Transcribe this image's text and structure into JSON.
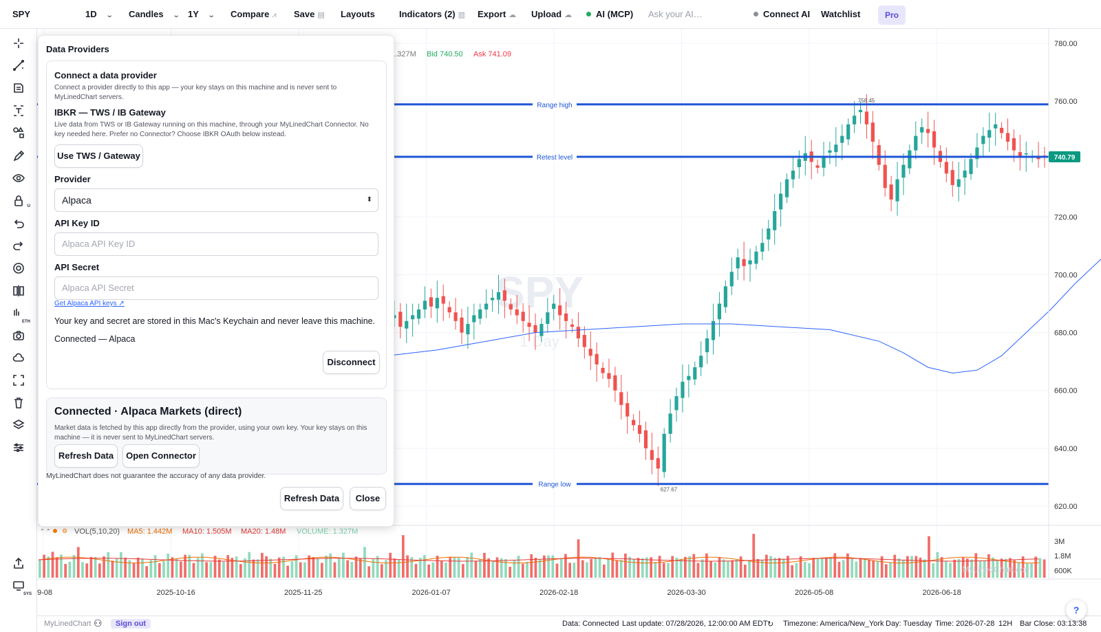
{
  "toolbar": {
    "symbol": "SPY",
    "interval": "1D",
    "chart_type": "Candles",
    "range": "1Y",
    "compare": "Compare",
    "save": "Save",
    "layouts": "Layouts",
    "indicators": "Indicators (2)",
    "export": "Export",
    "upload": "Upload",
    "ai": "AI (MCP)",
    "ai_placeholder": "Ask your AI…",
    "connect_ai": "Connect AI",
    "watchlist": "Watchlist",
    "pro": "Pro",
    "ai_dot_color": "#22ab5f",
    "connect_dot_color": "#8a8f98"
  },
  "left_tools": [
    "crosshair-icon",
    "trend-line-icon",
    "fib-icon",
    "text-icon",
    "shapes-icon",
    "pencil-icon",
    "eye-icon",
    "lock-icon",
    "undo-icon",
    "redo-icon",
    "settings-icon",
    "split-icon",
    "eth-icon",
    "camera-icon",
    "cloud-icon",
    "fullscreen-icon",
    "trash-icon",
    "layers-icon",
    "sliders-icon",
    "share-icon",
    "sys-icon"
  ],
  "left_tool_badges": {
    "eth": "ETH",
    "sys": "SYS",
    "lock": "U"
  },
  "header": {
    "vol": ": 1.327M",
    "bid": "Bid 740.50",
    "ask": "Ask 741.09",
    "bid_color": "#22ab5f",
    "ask_color": "#f23645"
  },
  "watermark": {
    "symbol": "SPY",
    "interval": "1 Day"
  },
  "levels": [
    {
      "label": "Range high",
      "price": 758.9
    },
    {
      "label": "Retest level",
      "price": 740.79
    },
    {
      "label": "Range low",
      "price": 627.67
    }
  ],
  "level_color": "#1e55d6",
  "last_price": "740.79",
  "price_axis": [
    "780.00",
    "760.00",
    "740.00",
    "720.00",
    "700.00",
    "680.00",
    "660.00",
    "640.00",
    "620.00"
  ],
  "annotations": {
    "high": "758.45",
    "low": "627.67"
  },
  "volume_legend": {
    "params": "VOL(5,10,20)",
    "ma5": "MA5: 1.442M",
    "ma10": "MA10: 1.505M",
    "ma20": "MA20: 1.48M",
    "volume": "VOLUME: 1.327M"
  },
  "volume_axis": [
    "3M",
    "1.8M",
    "600K"
  ],
  "volume_watermark": "MyLinedChart.com",
  "date_axis": [
    "9-08",
    "2025-10-16",
    "2025-11-25",
    "2026-01-07",
    "2026-02-18",
    "2026-03-30",
    "2026-05-08",
    "2026-06-18"
  ],
  "colors": {
    "up": "#26a69a",
    "down": "#ef5350",
    "ma_line": "#2962ff"
  },
  "chart_data": {
    "type": "candlestick",
    "symbol": "SPY",
    "y_range": [
      615,
      785
    ],
    "ma_line": [
      [
        0,
        672
      ],
      [
        8,
        674
      ],
      [
        16,
        677
      ],
      [
        24,
        680
      ],
      [
        32,
        681
      ],
      [
        40,
        682
      ],
      [
        48,
        683
      ],
      [
        56,
        683
      ],
      [
        64,
        682
      ],
      [
        72,
        681
      ],
      [
        80,
        677
      ],
      [
        84,
        673
      ],
      [
        88,
        668
      ],
      [
        92,
        666
      ],
      [
        96,
        667
      ],
      [
        100,
        672
      ],
      [
        104,
        680
      ],
      [
        108,
        688
      ],
      [
        112,
        697
      ],
      [
        116,
        705
      ],
      [
        120,
        713
      ],
      [
        124,
        721
      ],
      [
        128,
        727
      ],
      [
        132,
        731
      ],
      [
        136,
        734
      ],
      [
        140,
        736
      ],
      [
        144,
        738
      ],
      [
        148,
        739
      ],
      [
        152,
        740
      ],
      [
        157,
        741
      ]
    ],
    "closes": [
      685,
      686,
      682,
      684,
      686,
      688,
      691,
      689,
      692,
      690,
      687,
      684,
      680,
      683,
      686,
      688,
      690,
      692,
      694,
      691,
      688,
      686,
      684,
      682,
      680,
      683,
      687,
      690,
      686,
      684,
      682,
      678,
      675,
      672,
      669,
      666,
      664,
      660,
      655,
      651,
      648,
      645,
      640,
      636,
      633,
      645,
      652,
      658,
      663,
      665,
      668,
      672,
      678,
      684,
      690,
      696,
      701,
      706,
      703,
      705,
      708,
      711,
      716,
      722,
      728,
      733,
      736,
      740,
      742,
      739,
      737,
      741,
      743,
      745,
      748,
      752,
      755,
      757,
      752,
      746,
      738,
      730,
      726,
      733,
      738,
      743,
      748,
      751,
      749,
      744,
      739,
      735,
      731,
      733,
      736,
      740,
      744,
      748,
      750,
      752,
      749,
      746,
      743,
      741,
      742,
      741,
      740,
      741
    ]
  },
  "panel": {
    "title": "Data Providers",
    "connect_title": "Connect a data provider",
    "connect_desc": "Connect a provider directly to this app — your key stays on this machine and is never sent to MyLinedChart servers.",
    "ibkr_title": "IBKR — TWS / IB Gateway",
    "ibkr_desc": "Live data from TWS or IB Gateway running on this machine, through your MyLinedChart Connector. No key needed here. Prefer no Connector? Choose IBKR OAuth below instead.",
    "use_tws": "Use TWS / Gateway",
    "provider_label": "Provider",
    "provider_value": "Alpaca",
    "key_id_label": "API Key ID",
    "key_id_placeholder": "Alpaca API Key ID",
    "secret_label": "API Secret",
    "secret_placeholder": "Alpaca API Secret",
    "get_keys": "Get Alpaca API keys ↗",
    "keychain_note": "Your key and secret are stored in this Mac's Keychain and never leave this machine.",
    "connected_line": "Connected — Alpaca",
    "disconnect": "Disconnect",
    "status_title": "Connected · Alpaca Markets (direct)",
    "status_desc": "Market data is fetched by this app directly from the provider, using your own key. Your key stays on this machine — it is never sent to MyLinedChart servers.",
    "refresh": "Refresh Data",
    "open_connector": "Open Connector",
    "disclaimer": "MyLinedChart does not guarantee the accuracy of any data provider.",
    "refresh_footer": "Refresh Data",
    "close": "Close"
  },
  "status": {
    "brand": "MyLinedChart",
    "sign_out": "Sign out",
    "data": "Data: Connected",
    "last_update": "Last update: 07/28/2026, 12:00:00 AM EDT",
    "refresh_icon": "↻",
    "timezone": "Timezone: America/New_York",
    "day": "Day: Tuesday",
    "time": "Time: 2026-07-28",
    "session": "12H",
    "bar_close": "Bar Close: 03:13:38"
  },
  "help": "?"
}
